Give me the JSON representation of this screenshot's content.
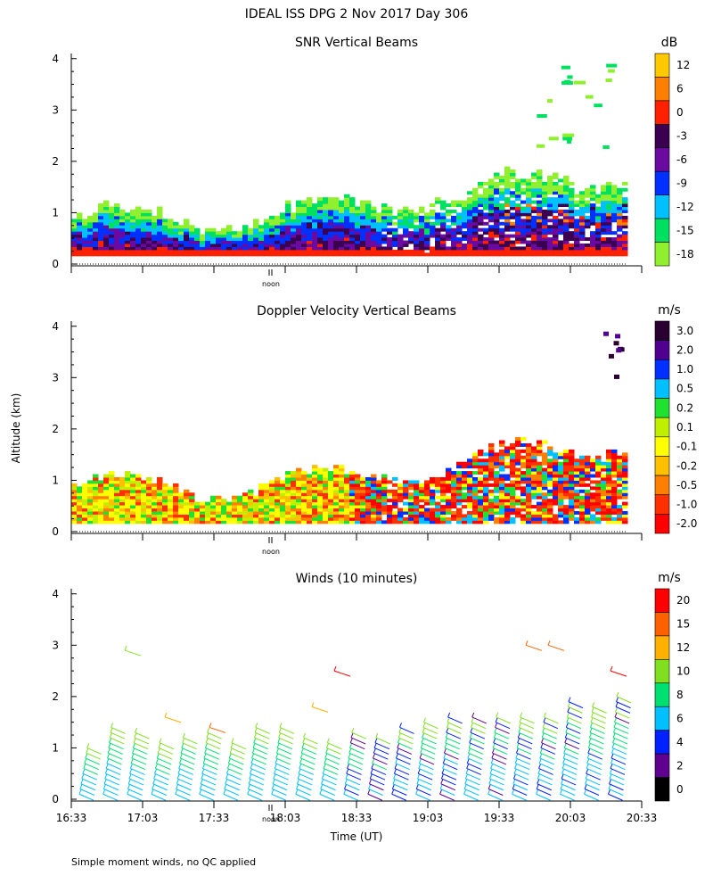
{
  "figure": {
    "title": "IDEAL ISS DPG    2 Nov 2017 Day 306",
    "ylabel": "Altitude (km)",
    "xlabel": "Time (UT)",
    "footnote": "Simple moment winds, no QC applied"
  },
  "chart_data": [
    {
      "type": "heatmap",
      "title": "SNR Vertical Beams",
      "y_ticks": [
        0,
        1,
        2,
        3,
        4
      ],
      "ylim": [
        0,
        4.1
      ],
      "x_range": [
        "16:33",
        "20:33"
      ],
      "noon_label": "noon",
      "noon_time": "17:57",
      "colorbar": {
        "unit": "dB",
        "labels": [
          "12",
          "6",
          "0",
          "-3",
          "-6",
          "-9",
          "-12",
          "-15",
          "-18"
        ],
        "colors": [
          "#ffc800",
          "#ff8000",
          "#ff2000",
          "#3c0050",
          "#6a0aa0",
          "#0030ff",
          "#00c0ff",
          "#00e060",
          "#90f030"
        ]
      }
    },
    {
      "type": "heatmap",
      "title": "Doppler Velocity Vertical Beams",
      "y_ticks": [
        0,
        1,
        2,
        3,
        4
      ],
      "ylim": [
        0,
        4.1
      ],
      "x_range": [
        "16:33",
        "20:33"
      ],
      "noon_label": "noon",
      "colorbar": {
        "unit": "m/s",
        "labels": [
          "3.0",
          "2.0",
          "1.0",
          "0.5",
          "0.2",
          "0.1",
          "-0.1",
          "-0.2",
          "-0.5",
          "-1.0",
          "-2.0"
        ],
        "colors": [
          "#2a0030",
          "#500090",
          "#0030ff",
          "#00c0ff",
          "#20e030",
          "#c0f000",
          "#ffff00",
          "#ffc000",
          "#ff8000",
          "#ff3000",
          "#ff0000"
        ]
      }
    },
    {
      "type": "scatter",
      "title": "Winds (10 minutes)",
      "y_ticks": [
        0,
        1,
        2,
        3,
        4
      ],
      "ylim": [
        0,
        4.1
      ],
      "x_ticks": [
        "16:33",
        "17:03",
        "17:33",
        "18:03",
        "18:33",
        "19:03",
        "19:33",
        "20:03",
        "20:33"
      ],
      "noon_label": "noon",
      "colorbar": {
        "unit": "m/s",
        "labels": [
          "20",
          "15",
          "12",
          "10",
          "8",
          "6",
          "4",
          "2",
          "0"
        ],
        "colors": [
          "#ff0000",
          "#ff6000",
          "#ffb000",
          "#80e020",
          "#00e070",
          "#00c0ff",
          "#0020ff",
          "#600090",
          "#000000"
        ]
      }
    }
  ]
}
